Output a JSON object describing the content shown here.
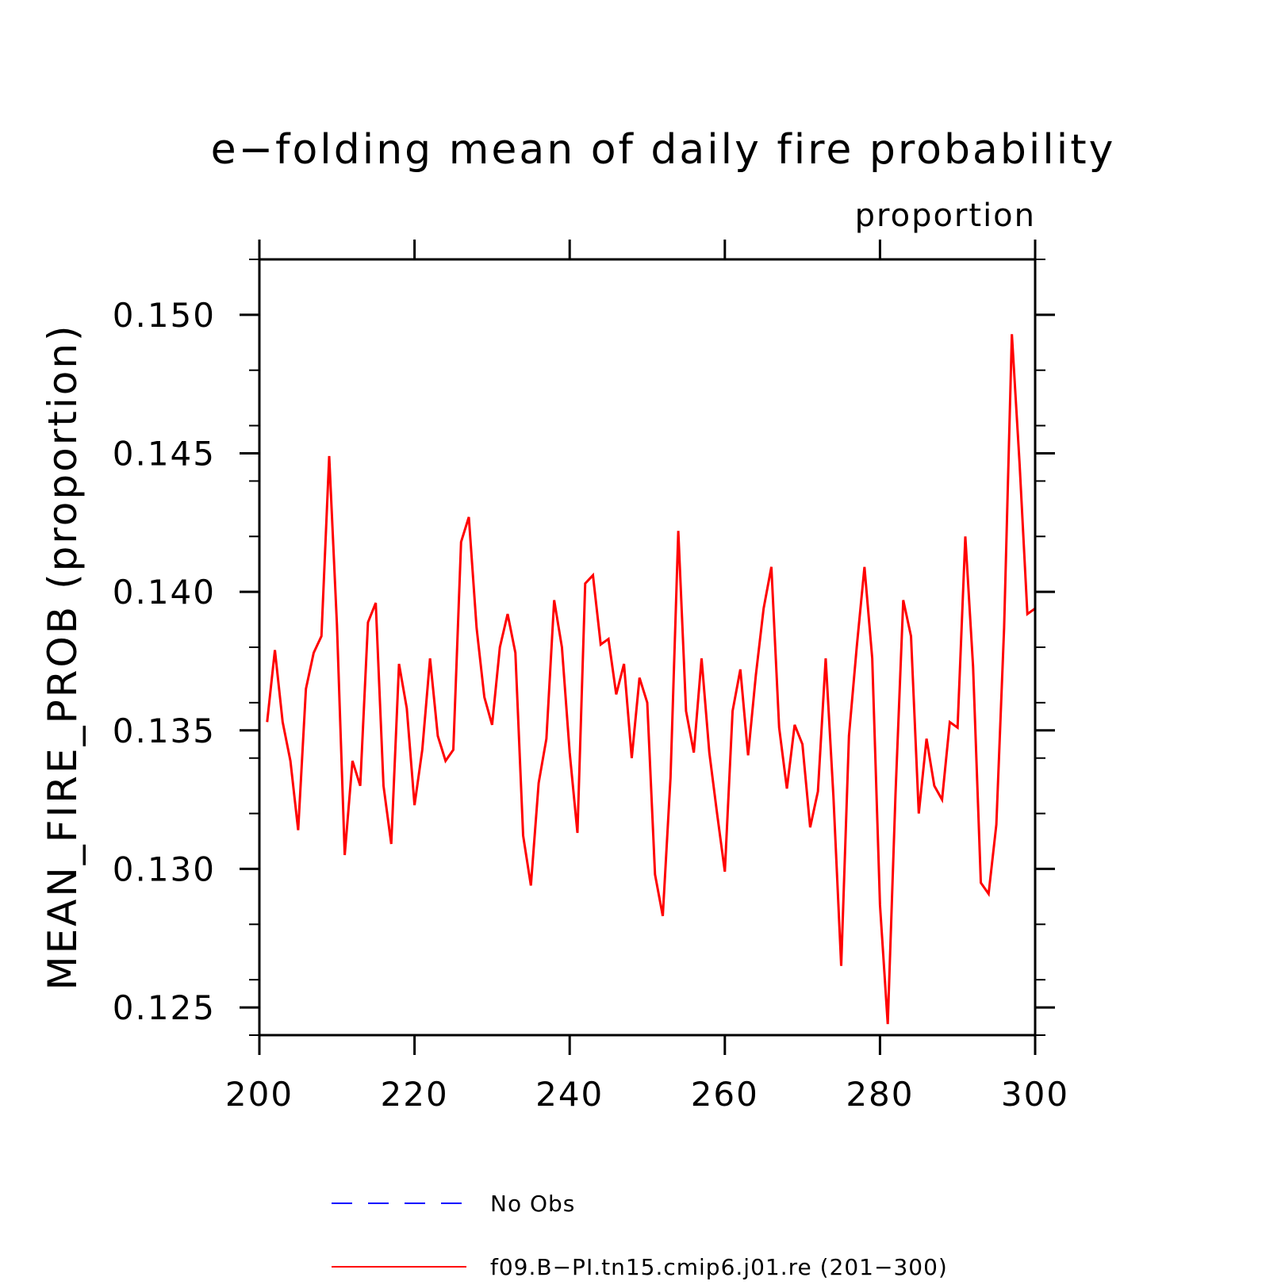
{
  "chart_data": {
    "type": "line",
    "title": "e−folding mean of daily fire probability",
    "units": "proportion",
    "ylabel": "MEAN_FIRE_PROB   (proportion)",
    "xlabel": "",
    "xlim": [
      200,
      300
    ],
    "ylim": [
      0.124,
      0.152
    ],
    "xticks": [
      "200",
      "220",
      "240",
      "260",
      "280",
      "300"
    ],
    "yticks": [
      "0.125",
      "0.130",
      "0.135",
      "0.140",
      "0.145",
      "0.150"
    ],
    "legend": [
      {
        "label": "No Obs",
        "color": "#0000ff",
        "style": "dashed"
      },
      {
        "label": "f09.B−PI.tn15.cmip6.j01.re (201−300)",
        "color": "#ff0000",
        "style": "solid"
      }
    ],
    "series": [
      {
        "name": "f09.B−PI.tn15.cmip6.j01.re (201−300)",
        "color": "#ff0000",
        "x": [
          201,
          202,
          203,
          204,
          205,
          206,
          207,
          208,
          209,
          210,
          211,
          212,
          213,
          214,
          215,
          216,
          217,
          218,
          219,
          220,
          221,
          222,
          223,
          224,
          225,
          226,
          227,
          228,
          229,
          230,
          231,
          232,
          233,
          234,
          235,
          236,
          237,
          238,
          239,
          240,
          241,
          242,
          243,
          244,
          245,
          246,
          247,
          248,
          249,
          250,
          251,
          252,
          253,
          254,
          255,
          256,
          257,
          258,
          259,
          260,
          261,
          262,
          263,
          264,
          265,
          266,
          267,
          268,
          269,
          270,
          271,
          272,
          273,
          274,
          275,
          276,
          277,
          278,
          279,
          280,
          281,
          282,
          283,
          284,
          285,
          286,
          287,
          288,
          289,
          290,
          291,
          292,
          293,
          294,
          295,
          296,
          297,
          298,
          299,
          300
        ],
        "values": [
          0.1353,
          0.1379,
          0.1353,
          0.1339,
          0.1314,
          0.1365,
          0.1378,
          0.1384,
          0.1449,
          0.1388,
          0.1305,
          0.1339,
          0.133,
          0.1389,
          0.1396,
          0.133,
          0.1309,
          0.1374,
          0.1358,
          0.1323,
          0.1343,
          0.1376,
          0.1348,
          0.1339,
          0.1343,
          0.1418,
          0.1427,
          0.1387,
          0.1362,
          0.1352,
          0.138,
          0.1392,
          0.1378,
          0.1312,
          0.1294,
          0.1331,
          0.1347,
          0.1397,
          0.138,
          0.1342,
          0.1313,
          0.1403,
          0.1406,
          0.1381,
          0.1383,
          0.1363,
          0.1374,
          0.134,
          0.1369,
          0.136,
          0.1298,
          0.1283,
          0.1333,
          0.1422,
          0.1357,
          0.1342,
          0.1376,
          0.1342,
          0.132,
          0.1299,
          0.1357,
          0.1372,
          0.1341,
          0.137,
          0.1394,
          0.1409,
          0.1351,
          0.1329,
          0.1352,
          0.1345,
          0.1315,
          0.1328,
          0.1376,
          0.1326,
          0.1265,
          0.1348,
          0.138,
          0.1409,
          0.1376,
          0.1287,
          0.1244,
          0.1327,
          0.1397,
          0.1384,
          0.132,
          0.1347,
          0.133,
          0.1325,
          0.1353,
          0.1351,
          0.142,
          0.1373,
          0.1295,
          0.1291,
          0.1316,
          0.1387,
          0.1493,
          0.1446,
          0.1392,
          0.1394
        ]
      }
    ]
  }
}
